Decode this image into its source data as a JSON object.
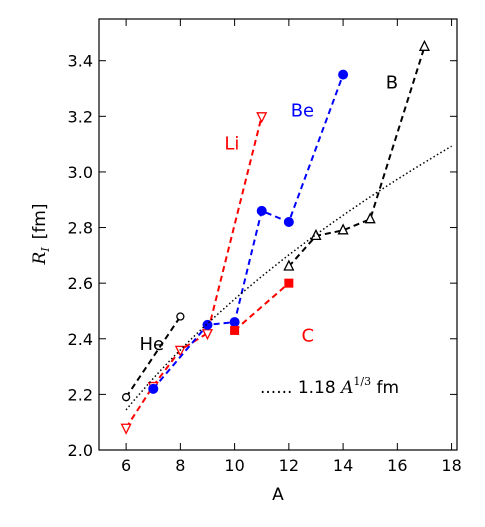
{
  "chart_data": {
    "type": "line",
    "xlabel": "A",
    "ylabel_main": "R",
    "ylabel_sub": "I",
    "ylabel_unit": "[fm]",
    "xlim": [
      5.0,
      18.2
    ],
    "ylim": [
      2.0,
      3.55
    ],
    "xticks": [
      6,
      8,
      10,
      12,
      14,
      16,
      18
    ],
    "yticks": [
      2.0,
      2.2,
      2.4,
      2.6,
      2.8,
      3.0,
      3.2,
      3.4
    ],
    "grid": false,
    "legend": "none",
    "series": [
      {
        "name": "He",
        "color": "#000000",
        "marker": "circle-open",
        "x": [
          6,
          8
        ],
        "y": [
          2.19,
          2.48
        ]
      },
      {
        "name": "Li",
        "color": "#ff0000",
        "marker": "triangle-down-open",
        "x": [
          6,
          7,
          8,
          9,
          11
        ],
        "y": [
          2.08,
          2.23,
          2.36,
          2.42,
          3.2
        ]
      },
      {
        "name": "Be",
        "color": "#0000ff",
        "marker": "circle-filled",
        "x": [
          7,
          9,
          10,
          11,
          12,
          14
        ],
        "y": [
          2.22,
          2.45,
          2.46,
          2.86,
          2.82,
          3.35
        ]
      },
      {
        "name": "B",
        "color": "#000000",
        "marker": "triangle-up-open",
        "x": [
          12,
          13,
          14,
          15,
          17
        ],
        "y": [
          2.66,
          2.77,
          2.79,
          2.83,
          3.45
        ]
      },
      {
        "name": "C",
        "color": "#ff0000",
        "marker": "square-filled",
        "x": [
          10,
          12
        ],
        "y": [
          2.43,
          2.6
        ]
      }
    ],
    "fit": {
      "coefficient": 1.18,
      "label_prefix": "...... 1.18 ",
      "label_var": "A",
      "label_exp": "1/3",
      "label_unit": " fm",
      "x_range": [
        6,
        18
      ]
    }
  }
}
